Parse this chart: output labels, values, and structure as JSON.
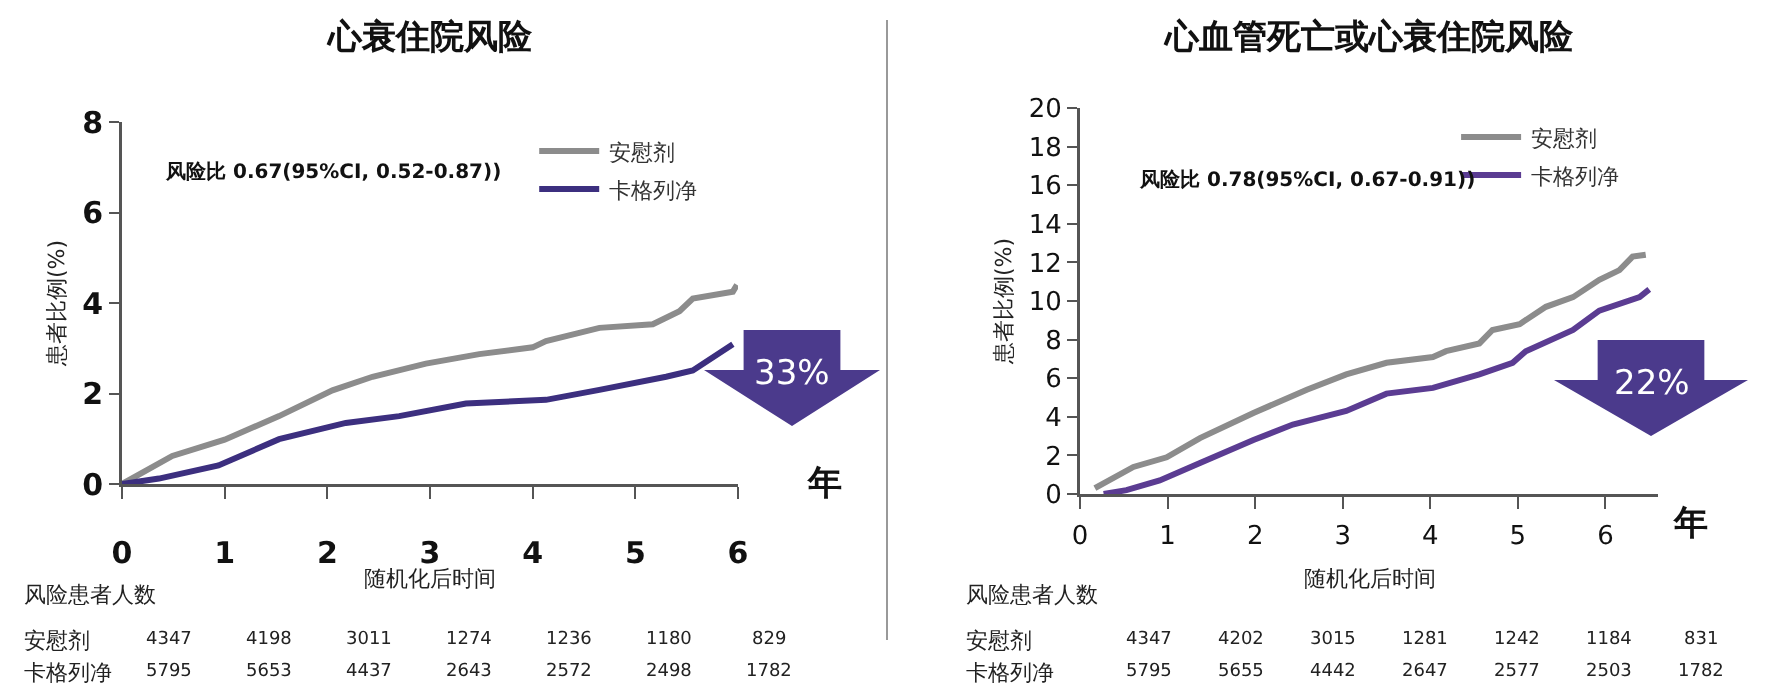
{
  "chart_data": [
    {
      "type": "line",
      "title": "心衰住院风险",
      "ylabel": "患者比例(%)",
      "xlabel": "随机化后时间",
      "xlim": [
        0,
        6
      ],
      "xticks": [
        0,
        1,
        2,
        3,
        4,
        5,
        6
      ],
      "ylim": [
        0,
        8
      ],
      "yticks": [
        0,
        2,
        4,
        6,
        8
      ],
      "grid": false,
      "legend": "top right",
      "marker": "none",
      "line_style": "solid",
      "series": [
        {
          "name": "安慰剂",
          "color": "#8c8c8c",
          "x": [
            0,
            0.49,
            1.0,
            1.53,
            2.05,
            2.44,
            2.96,
            3.48,
            4.0,
            4.13,
            4.65,
            5.17,
            5.43,
            5.56,
            5.95,
            5.99
          ],
          "values": [
            0,
            0.62,
            0.98,
            1.5,
            2.07,
            2.37,
            2.66,
            2.87,
            3.02,
            3.16,
            3.45,
            3.53,
            3.82,
            4.1,
            4.25,
            4.4
          ]
        },
        {
          "name": "卡格列净",
          "color": "#3c2f7f",
          "x": [
            0,
            0.36,
            0.94,
            1.53,
            2.18,
            2.7,
            3.35,
            4.13,
            4.65,
            5.3,
            5.56,
            5.95
          ],
          "values": [
            0,
            0.12,
            0.41,
            0.99,
            1.35,
            1.5,
            1.78,
            1.86,
            2.08,
            2.37,
            2.51,
            3.09
          ]
        }
      ],
      "annotations": [
        "风险比 0.67(95%CI, 0.52-0.87))",
        "33%",
        "年",
        "风险患者人数",
        "安慰剂",
        "4347",
        "4198",
        "3011",
        "1274",
        "1236",
        "1180",
        "829",
        "卡格列净",
        "5795",
        "5653",
        "4437",
        "2643",
        "2572",
        "2498",
        "1782"
      ]
    },
    {
      "type": "line",
      "title": "心血管死亡或心衰住院风险",
      "ylabel": "患者比例(%)",
      "xlabel": "随机化后时间",
      "xlim": [
        0,
        6.6
      ],
      "xticks": [
        0,
        1,
        2,
        3,
        4,
        5,
        6
      ],
      "ylim": [
        0,
        20
      ],
      "yticks": [
        0,
        2,
        4,
        6,
        8,
        10,
        12,
        14,
        16,
        18,
        20
      ],
      "grid": false,
      "legend": "top right",
      "marker": "none",
      "line_style": "solid",
      "series": [
        {
          "name": "安慰剂",
          "color": "#8c8c8c",
          "x": [
            0.17,
            0.61,
            0.99,
            1.37,
            1.98,
            2.59,
            3.04,
            3.5,
            4.03,
            4.18,
            4.56,
            4.71,
            5.02,
            5.32,
            5.63,
            5.93,
            6.16,
            6.31,
            6.46
          ],
          "values": [
            0.3,
            1.4,
            1.9,
            2.9,
            4.2,
            5.4,
            6.2,
            6.8,
            7.1,
            7.4,
            7.8,
            8.5,
            8.8,
            9.7,
            10.2,
            11.1,
            11.6,
            12.3,
            12.4
          ]
        },
        {
          "name": "卡格列净",
          "color": "#5b3c92",
          "x": [
            0.27,
            0.53,
            0.91,
            1.37,
            1.98,
            2.43,
            3.04,
            3.5,
            4.03,
            4.56,
            4.94,
            5.09,
            5.63,
            5.93,
            6.39,
            6.5
          ],
          "values": [
            0,
            0.2,
            0.7,
            1.6,
            2.8,
            3.6,
            4.3,
            5.2,
            5.5,
            6.2,
            6.8,
            7.4,
            8.5,
            9.5,
            10.2,
            10.6
          ]
        }
      ],
      "annotations": [
        "风险比 0.78(95%CI, 0.67-0.91))",
        "22%",
        "年",
        "风险患者人数",
        "安慰剂",
        "4347",
        "4202",
        "3015",
        "1281",
        "1242",
        "1184",
        "831",
        "卡格列净",
        "5795",
        "5655",
        "4442",
        "2647",
        "2577",
        "2503",
        "1782"
      ]
    }
  ]
}
